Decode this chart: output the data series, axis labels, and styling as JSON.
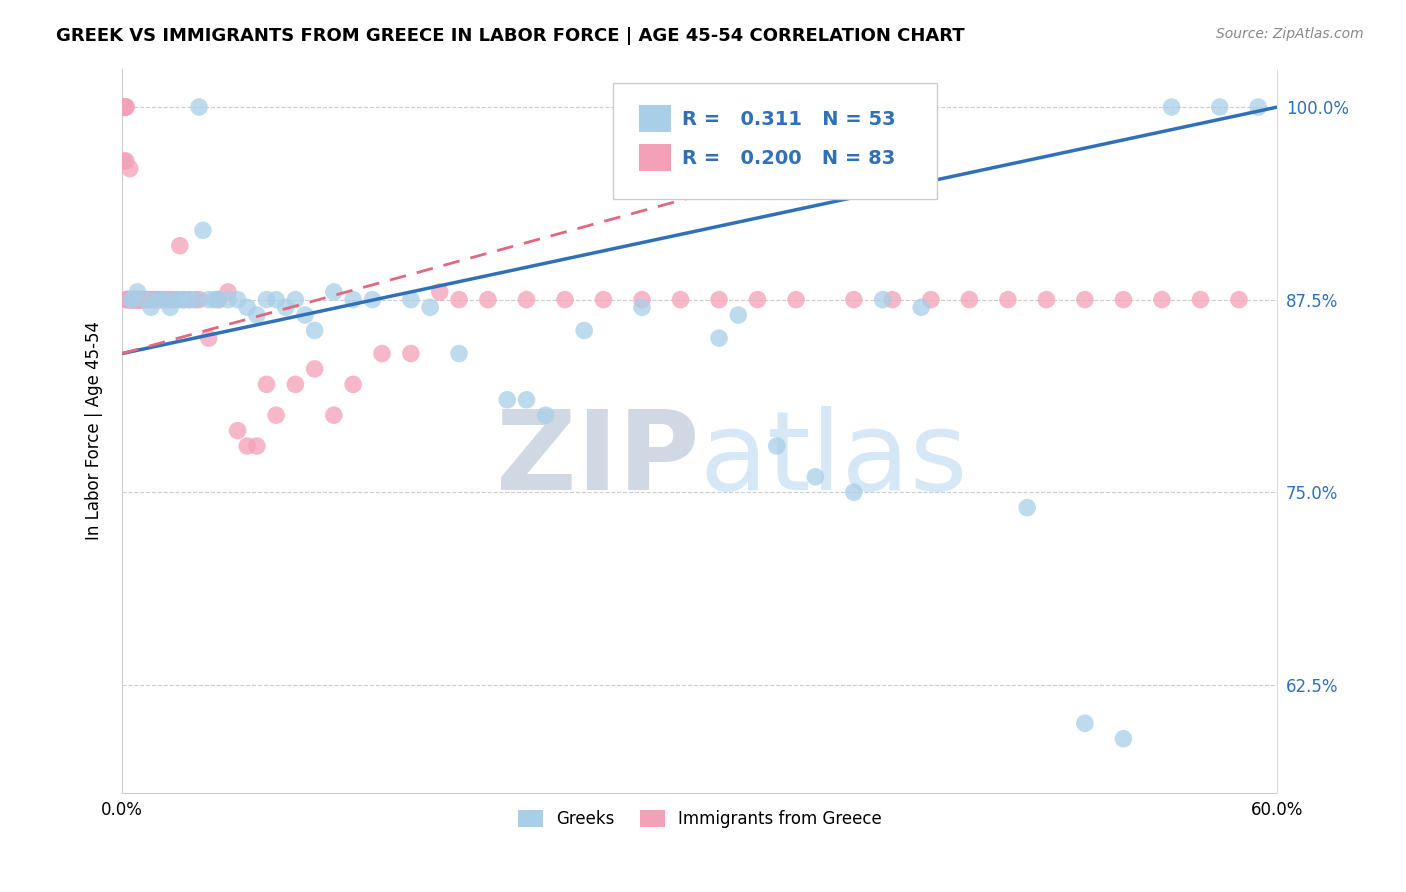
{
  "title": "GREEK VS IMMIGRANTS FROM GREECE IN LABOR FORCE | AGE 45-54 CORRELATION CHART",
  "source": "Source: ZipAtlas.com",
  "ylabel": "In Labor Force | Age 45-54",
  "xlim": [
    0.0,
    0.6
  ],
  "ylim": [
    0.555,
    1.025
  ],
  "xticks": [
    0.0,
    0.1,
    0.2,
    0.3,
    0.4,
    0.5,
    0.6
  ],
  "xticklabels": [
    "0.0%",
    "",
    "",
    "",
    "",
    "",
    "60.0%"
  ],
  "yticks": [
    0.625,
    0.75,
    0.875,
    1.0
  ],
  "yticklabels": [
    "62.5%",
    "75.0%",
    "87.5%",
    "100.0%"
  ],
  "legend_R_blue": "0.311",
  "legend_N_blue": "53",
  "legend_R_pink": "0.200",
  "legend_N_pink": "83",
  "legend_label_blue": "Greeks",
  "legend_label_pink": "Immigrants from Greece",
  "blue_color": "#A8CEE8",
  "pink_color": "#F4A0B8",
  "trend_blue_color": "#3070B8",
  "trend_pink_color": "#E06880",
  "watermark_color": "#D6E8F6",
  "blue_x": [
    0.005,
    0.005,
    0.008,
    0.012,
    0.015,
    0.018,
    0.02,
    0.022,
    0.025,
    0.028,
    0.03,
    0.032,
    0.035,
    0.038,
    0.04,
    0.042,
    0.045,
    0.048,
    0.05,
    0.055,
    0.06,
    0.065,
    0.07,
    0.075,
    0.08,
    0.085,
    0.09,
    0.095,
    0.1,
    0.11,
    0.12,
    0.13,
    0.15,
    0.16,
    0.175,
    0.2,
    0.21,
    0.22,
    0.24,
    0.27,
    0.31,
    0.32,
    0.34,
    0.36,
    0.38,
    0.395,
    0.415,
    0.47,
    0.5,
    0.52,
    0.545,
    0.57,
    0.59
  ],
  "blue_y": [
    0.875,
    0.875,
    0.88,
    0.875,
    0.87,
    0.875,
    0.875,
    0.875,
    0.87,
    0.875,
    0.875,
    0.875,
    0.875,
    0.875,
    1.0,
    0.92,
    0.875,
    0.875,
    0.875,
    0.875,
    0.875,
    0.87,
    0.865,
    0.875,
    0.875,
    0.87,
    0.875,
    0.865,
    0.855,
    0.88,
    0.875,
    0.875,
    0.875,
    0.87,
    0.84,
    0.81,
    0.81,
    0.8,
    0.855,
    0.87,
    0.85,
    0.865,
    0.78,
    0.76,
    0.75,
    0.875,
    0.87,
    0.74,
    0.6,
    0.59,
    1.0,
    1.0,
    1.0
  ],
  "pink_x": [
    0.001,
    0.001,
    0.001,
    0.001,
    0.001,
    0.002,
    0.002,
    0.002,
    0.002,
    0.003,
    0.003,
    0.004,
    0.004,
    0.005,
    0.005,
    0.005,
    0.006,
    0.006,
    0.007,
    0.007,
    0.008,
    0.008,
    0.008,
    0.009,
    0.009,
    0.01,
    0.01,
    0.01,
    0.011,
    0.012,
    0.013,
    0.014,
    0.015,
    0.016,
    0.017,
    0.018,
    0.019,
    0.02,
    0.022,
    0.024,
    0.026,
    0.028,
    0.03,
    0.032,
    0.035,
    0.038,
    0.04,
    0.045,
    0.05,
    0.055,
    0.06,
    0.065,
    0.07,
    0.075,
    0.08,
    0.09,
    0.1,
    0.11,
    0.12,
    0.135,
    0.15,
    0.165,
    0.175,
    0.19,
    0.21,
    0.23,
    0.25,
    0.27,
    0.29,
    0.31,
    0.33,
    0.35,
    0.38,
    0.4,
    0.42,
    0.44,
    0.46,
    0.48,
    0.5,
    0.52,
    0.54,
    0.56,
    0.58
  ],
  "pink_y": [
    1.0,
    1.0,
    1.0,
    1.0,
    0.965,
    1.0,
    1.0,
    0.965,
    0.875,
    0.875,
    0.875,
    0.96,
    0.875,
    0.875,
    0.875,
    0.875,
    0.875,
    0.875,
    0.875,
    0.875,
    0.875,
    0.875,
    0.875,
    0.875,
    0.875,
    0.875,
    0.875,
    0.875,
    0.875,
    0.875,
    0.875,
    0.875,
    0.875,
    0.875,
    0.875,
    0.875,
    0.875,
    0.875,
    0.875,
    0.875,
    0.875,
    0.875,
    0.91,
    0.875,
    0.875,
    0.875,
    0.875,
    0.85,
    0.875,
    0.88,
    0.79,
    0.78,
    0.78,
    0.82,
    0.8,
    0.82,
    0.83,
    0.8,
    0.82,
    0.84,
    0.84,
    0.88,
    0.875,
    0.875,
    0.875,
    0.875,
    0.875,
    0.875,
    0.875,
    0.875,
    0.875,
    0.875,
    0.875,
    0.875,
    0.875,
    0.875,
    0.875,
    0.875,
    0.875,
    0.875,
    0.875,
    0.875,
    0.875
  ],
  "blue_trend_x0": 0.0,
  "blue_trend_y0": 0.84,
  "blue_trend_x1": 0.6,
  "blue_trend_y1": 1.0,
  "pink_trend_x0": 0.0,
  "pink_trend_y0": 0.84,
  "pink_trend_x1": 0.35,
  "pink_trend_y1": 0.96
}
